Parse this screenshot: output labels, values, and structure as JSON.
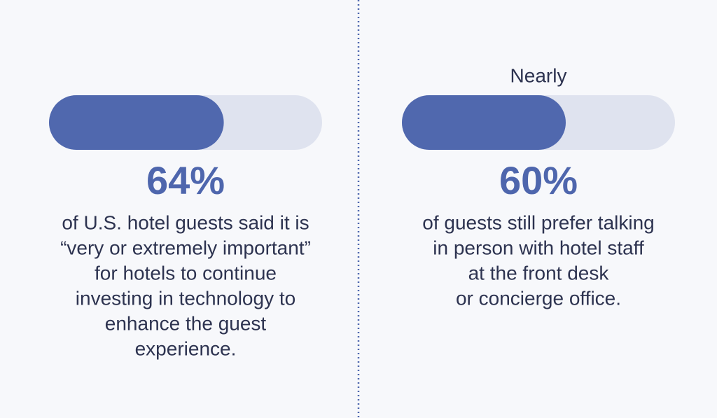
{
  "range": [
    0,
    100
  ],
  "panels": [
    {
      "value": 64,
      "value_label": "64%",
      "description": [
        "of U.S. hotel guests said it is",
        "“very or extremely important”",
        "for hotels to continue",
        "investing in technology to",
        "enhance the guest",
        "experience."
      ]
    },
    {
      "prefix": "Nearly",
      "value": 60,
      "value_label": "60%",
      "description": [
        "of guests still prefer talking",
        "in person with hotel staff",
        "at the front desk",
        "or concierge office."
      ]
    }
  ]
}
